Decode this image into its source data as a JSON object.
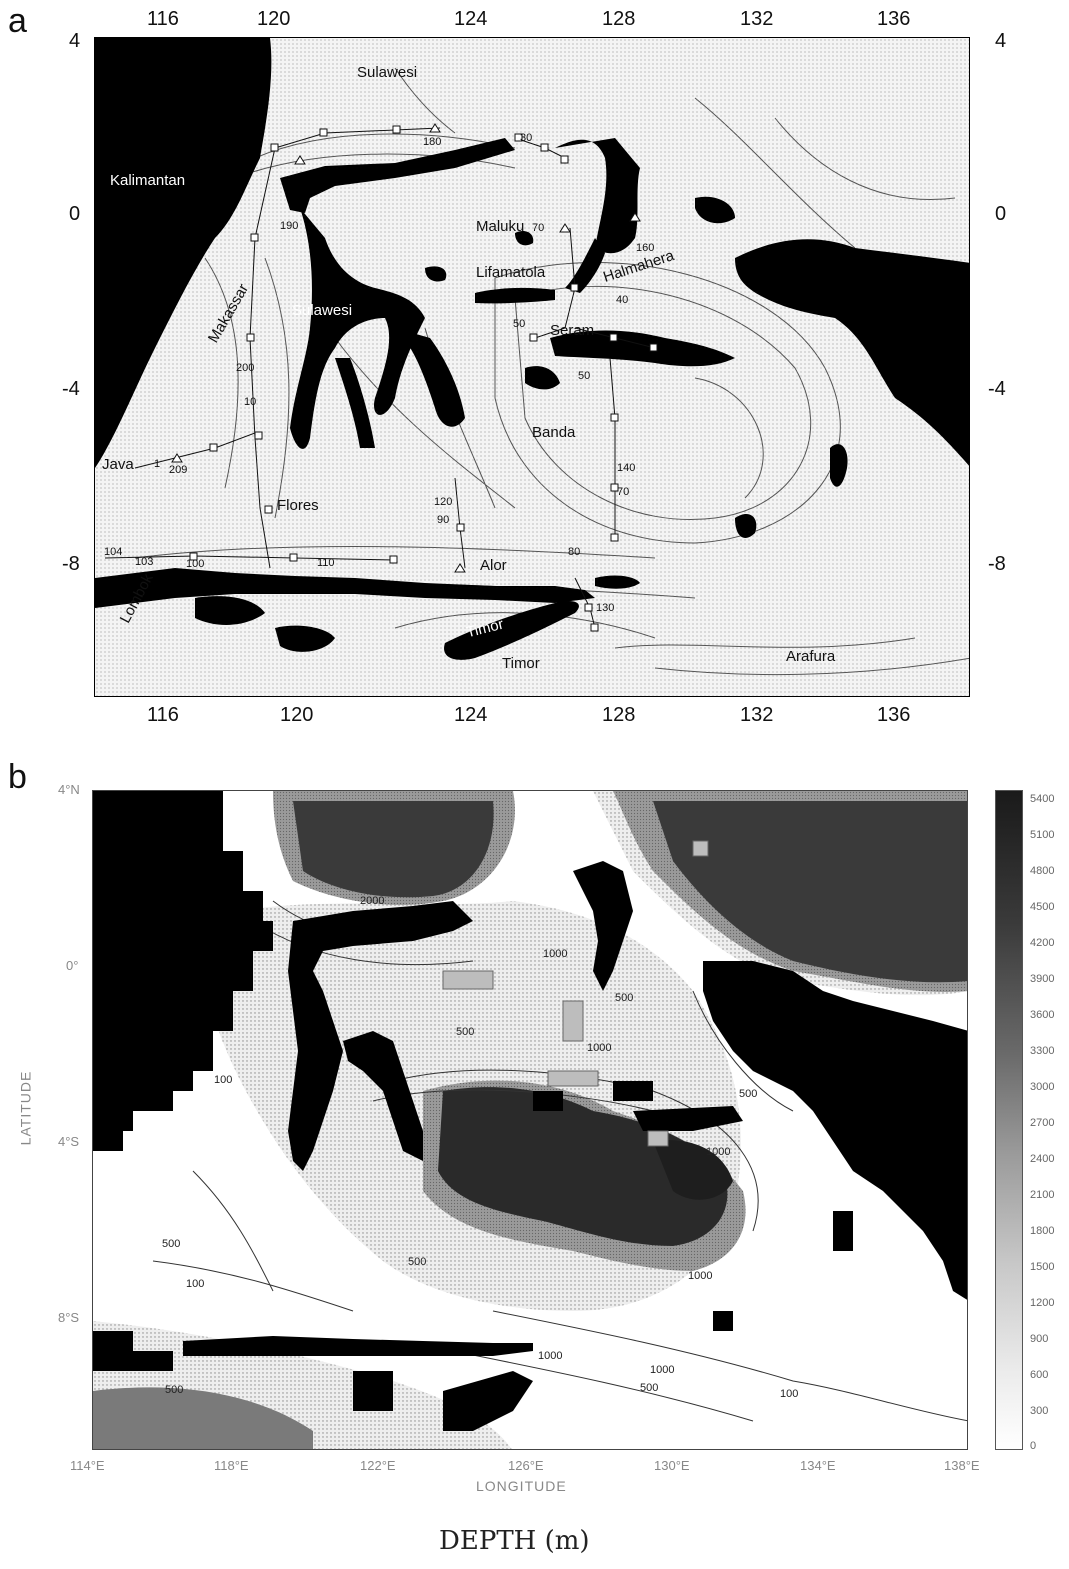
{
  "panel_a": {
    "letter": "a",
    "lon_ticks": [
      "116",
      "120",
      "124",
      "128",
      "132",
      "136"
    ],
    "lat_ticks": [
      "4",
      "0",
      "-4",
      "-8"
    ],
    "places": [
      {
        "id": "sulawesi-north",
        "text": "Sulawesi"
      },
      {
        "id": "kalimantan",
        "text": "Kalimantan",
        "white": true
      },
      {
        "id": "maluku",
        "text": "Maluku"
      },
      {
        "id": "lifamatola",
        "text": "Lifamatola"
      },
      {
        "id": "halmahera",
        "text": "Halmahera"
      },
      {
        "id": "sulawesi",
        "text": "Sulawesi",
        "white": true
      },
      {
        "id": "makassar",
        "text": "Makassar"
      },
      {
        "id": "seram",
        "text": "Seram"
      },
      {
        "id": "banda",
        "text": "Banda"
      },
      {
        "id": "java",
        "text": "Java"
      },
      {
        "id": "flores",
        "text": "Flores"
      },
      {
        "id": "alor",
        "text": "Alor"
      },
      {
        "id": "lombok",
        "text": "Lombok"
      },
      {
        "id": "timor-island",
        "text": "Timor",
        "white": true
      },
      {
        "id": "timor-sea",
        "text": "Timor"
      },
      {
        "id": "arafura",
        "text": "Arafura"
      }
    ],
    "stations": [
      "180",
      "30",
      "190",
      "70",
      "160",
      "40",
      "50",
      "50",
      "200",
      "10",
      "1",
      "209",
      "140",
      "70",
      "120",
      "90",
      "104",
      "103",
      "100",
      "110",
      "80",
      "130"
    ]
  },
  "panel_b": {
    "letter": "b",
    "lat_ticks": [
      "4°N",
      "0°",
      "4°S",
      "8°S"
    ],
    "lon_ticks": [
      "114°E",
      "118°E",
      "122°E",
      "126°E",
      "130°E",
      "134°E",
      "138°E"
    ],
    "xlabel": "LONGITUDE",
    "ylabel": "LATITUDE",
    "contour_labels": [
      "2000",
      "1000",
      "500",
      "500",
      "1000",
      "500",
      "1000",
      "100",
      "500",
      "100",
      "500",
      "1000",
      "1000",
      "1000",
      "500",
      "100",
      "500"
    ],
    "colorbar_ticks": [
      "5400",
      "5100",
      "4800",
      "4500",
      "4200",
      "3900",
      "3600",
      "3300",
      "3000",
      "2700",
      "2400",
      "2100",
      "1800",
      "1500",
      "1200",
      "900",
      "600",
      "300",
      "0"
    ]
  },
  "caption": "DEPTH (m)"
}
